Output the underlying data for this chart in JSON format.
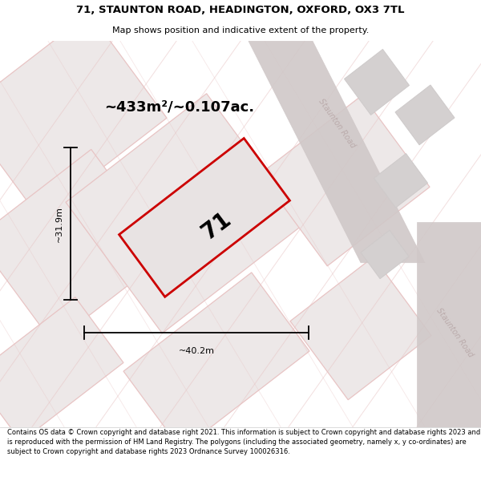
{
  "title": "71, STAUNTON ROAD, HEADINGTON, OXFORD, OX3 7TL",
  "subtitle": "Map shows position and indicative extent of the property.",
  "area_label": "~433m²/~0.107ac.",
  "plot_number": "71",
  "width_label": "~40.2m",
  "height_label": "~31.9m",
  "footer": "Contains OS data © Crown copyright and database right 2021. This information is subject to Crown copyright and database rights 2023 and is reproduced with the permission of HM Land Registry. The polygons (including the associated geometry, namely x, y co-ordinates) are subject to Crown copyright and database rights 2023 Ordnance Survey 100026316.",
  "bg_color": "#f2eeee",
  "map_bg": "#ede8e8",
  "plot_fill": "#e8e3e3",
  "plot_edge": "#cc0000",
  "footer_bg": "#ffffff",
  "title_bg": "#ffffff",
  "road_gray": "#d0c8c8",
  "block_gray": "#d4d0d0",
  "line_pink": "#e8c4c4",
  "road_label_color": "#b8a8a8"
}
